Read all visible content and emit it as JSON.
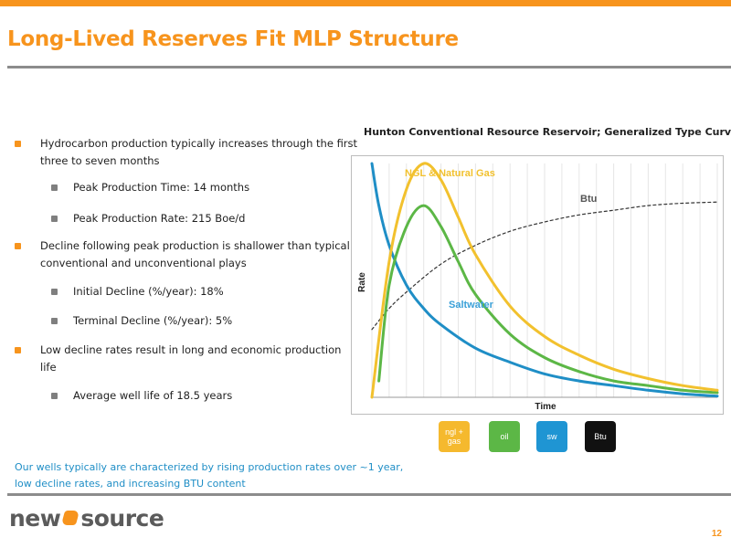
{
  "slide": {
    "title": "Long-Lived Reserves Fit MLP Structure",
    "page_number": "12"
  },
  "bullets": [
    {
      "level": 1,
      "text": "Hydrocarbon production typically increases through the first three to seven months"
    },
    {
      "level": 2,
      "text": "Peak Production Time: 14 months"
    },
    {
      "level": 2,
      "text": "Peak Production Rate: 215 Boe/d"
    },
    {
      "level": 1,
      "text": "Decline following peak production is shallower than typical conventional and unconventional plays"
    },
    {
      "level": 2,
      "text": "Initial Decline (%/year): 18%"
    },
    {
      "level": 2,
      "text": "Terminal Decline (%/year): 5%"
    },
    {
      "level": 1,
      "text": "Low decline rates result in long and economic production life"
    },
    {
      "level": 2,
      "text": "Average well life of 18.5 years"
    }
  ],
  "footnote": "Our wells typically are characterized by rising production rates over ~1 year, low decline rates, and increasing BTU content",
  "logo": {
    "left": "new",
    "right": "source"
  },
  "chart_data": {
    "type": "line",
    "title": "Hunton Conventional Resource Reservoir; Generalized Type Curve",
    "xlabel": "Time",
    "ylabel": "Rate",
    "grid": "vertical",
    "series": [
      {
        "name": "NGL & Natural Gas",
        "color": "#f2c12e",
        "x": [
          0,
          5,
          10,
          15,
          20,
          25,
          30,
          40,
          50,
          60,
          70,
          80,
          90,
          100
        ],
        "values": [
          0,
          58,
          89,
          100,
          93,
          77,
          61,
          39,
          26,
          18,
          12,
          8,
          5,
          3
        ]
      },
      {
        "name": "oil",
        "color": "#5cb746",
        "x": [
          2,
          5,
          10,
          15,
          20,
          25,
          30,
          40,
          50,
          60,
          70,
          80,
          90,
          100
        ],
        "values": [
          7,
          48,
          73,
          82,
          73,
          58,
          44,
          27,
          17,
          11,
          7,
          5,
          3,
          2
        ]
      },
      {
        "name": "Saltwater",
        "color": "#1f8ec6",
        "x": [
          0,
          2,
          5,
          10,
          15,
          20,
          30,
          40,
          50,
          60,
          70,
          80,
          90,
          100
        ],
        "values": [
          100,
          82,
          65,
          48,
          38,
          31,
          21,
          15,
          10,
          7,
          5,
          3,
          1.5,
          0.5
        ]
      },
      {
        "name": "Btu",
        "color": "#333333",
        "dashed": true,
        "x": [
          0,
          5,
          10,
          20,
          30,
          40,
          50,
          60,
          70,
          80,
          90,
          100
        ],
        "values": [
          29,
          38,
          45,
          57,
          65,
          71,
          75,
          78,
          80,
          82,
          83,
          83.5
        ]
      }
    ],
    "xlim": [
      0,
      100
    ],
    "ylim": [
      0,
      100
    ]
  },
  "legend_icons": [
    {
      "name": "ngl-gas",
      "label": "ngl + gas",
      "color": "#f5b92e"
    },
    {
      "name": "oil",
      "label": "oil",
      "color": "#5cb746"
    },
    {
      "name": "sw",
      "label": "sw",
      "color": "#1f95d3"
    },
    {
      "name": "btu",
      "label": "Btu",
      "color": "#111111"
    }
  ]
}
